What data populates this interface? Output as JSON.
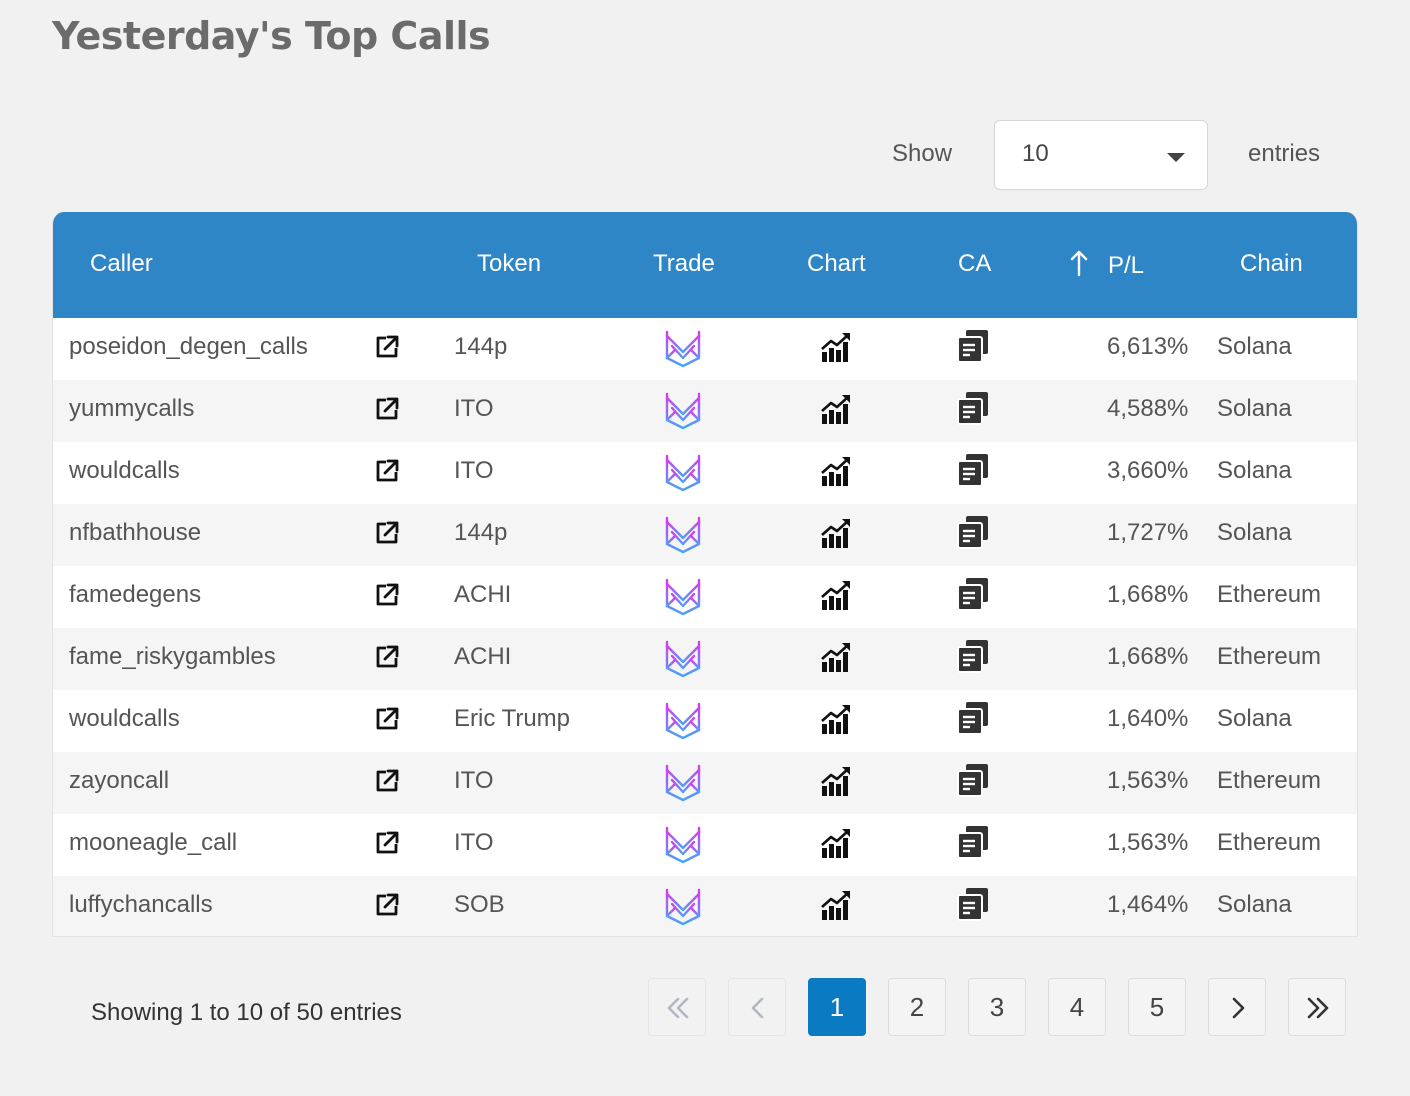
{
  "page": {
    "title": "Yesterday's Top Calls"
  },
  "length": {
    "show_label": "Show",
    "value": "10",
    "entries_label": "entries"
  },
  "table": {
    "headers": {
      "caller": "Caller",
      "token": "Token",
      "trade": "Trade",
      "chart": "Chart",
      "ca": "CA",
      "pl": "P/L",
      "chain": "Chain"
    },
    "sort": {
      "column": "P/L",
      "direction": "descending"
    },
    "rows": [
      {
        "caller": "poseidon_degen_calls",
        "token": "144p",
        "pl": "6,613%",
        "chain": "Solana"
      },
      {
        "caller": "yummycalls",
        "token": "ITO",
        "pl": "4,588%",
        "chain": "Solana"
      },
      {
        "caller": "wouldcalls",
        "token": "ITO",
        "pl": "3,660%",
        "chain": "Solana"
      },
      {
        "caller": "nfbathhouse",
        "token": "144p",
        "pl": "1,727%",
        "chain": "Solana"
      },
      {
        "caller": "famedegens",
        "token": "ACHI",
        "pl": "1,668%",
        "chain": "Ethereum"
      },
      {
        "caller": "fame_riskygambles",
        "token": "ACHI",
        "pl": "1,668%",
        "chain": "Ethereum"
      },
      {
        "caller": "wouldcalls",
        "token": "Eric Trump",
        "pl": "1,640%",
        "chain": "Solana"
      },
      {
        "caller": "zayoncall",
        "token": "ITO",
        "pl": "1,563%",
        "chain": "Ethereum"
      },
      {
        "caller": "mooneagle_call",
        "token": "ITO",
        "pl": "1,563%",
        "chain": "Ethereum"
      },
      {
        "caller": "luffychancalls",
        "token": "SOB",
        "pl": "1,464%",
        "chain": "Solana"
      }
    ],
    "row_icons": {
      "link": "external-link-icon",
      "trade": "trade-logo-icon",
      "chart": "chart-growth-icon",
      "ca": "copy-icon"
    }
  },
  "footer": {
    "info": "Showing 1 to 10 of 50 entries",
    "pages": [
      "1",
      "2",
      "3",
      "4",
      "5"
    ],
    "current_page": "1",
    "nav_icons": [
      "first-page-icon",
      "previous-page-icon",
      "next-page-icon",
      "last-page-icon"
    ]
  },
  "colors": {
    "header_bg": "#2f86c6",
    "active_page": "#0a7bc2",
    "background": "#f1f1f1",
    "trade_logo_gradient": [
      "#d63cf0",
      "#4aa3f5"
    ]
  }
}
